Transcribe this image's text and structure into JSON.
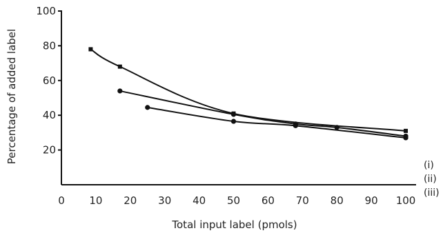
{
  "chart_data": {
    "type": "line",
    "xlabel": "Total input label (pmols)",
    "ylabel": "Percentage of added label",
    "xlim": [
      0,
      103
    ],
    "ylim": [
      0,
      100
    ],
    "x_ticks": [
      0,
      10,
      20,
      30,
      40,
      50,
      60,
      70,
      80,
      90,
      100
    ],
    "y_ticks": [
      20,
      40,
      60,
      80,
      100
    ],
    "grid": false,
    "series": [
      {
        "name": "(i)",
        "points": [
          {
            "x": 8.5,
            "y": 78
          },
          {
            "x": 17,
            "y": 68
          },
          {
            "x": 50,
            "y": 41
          },
          {
            "x": 100,
            "y": 31
          }
        ]
      },
      {
        "name": "(ii)",
        "points": [
          {
            "x": 17,
            "y": 54
          },
          {
            "x": 50,
            "y": 40.5
          },
          {
            "x": 68,
            "y": 35
          },
          {
            "x": 80,
            "y": 33
          },
          {
            "x": 100,
            "y": 28
          }
        ]
      },
      {
        "name": "(iii)",
        "points": [
          {
            "x": 25,
            "y": 44.5
          },
          {
            "x": 50,
            "y": 36.5
          },
          {
            "x": 68,
            "y": 34
          },
          {
            "x": 100,
            "y": 27
          }
        ]
      }
    ]
  }
}
